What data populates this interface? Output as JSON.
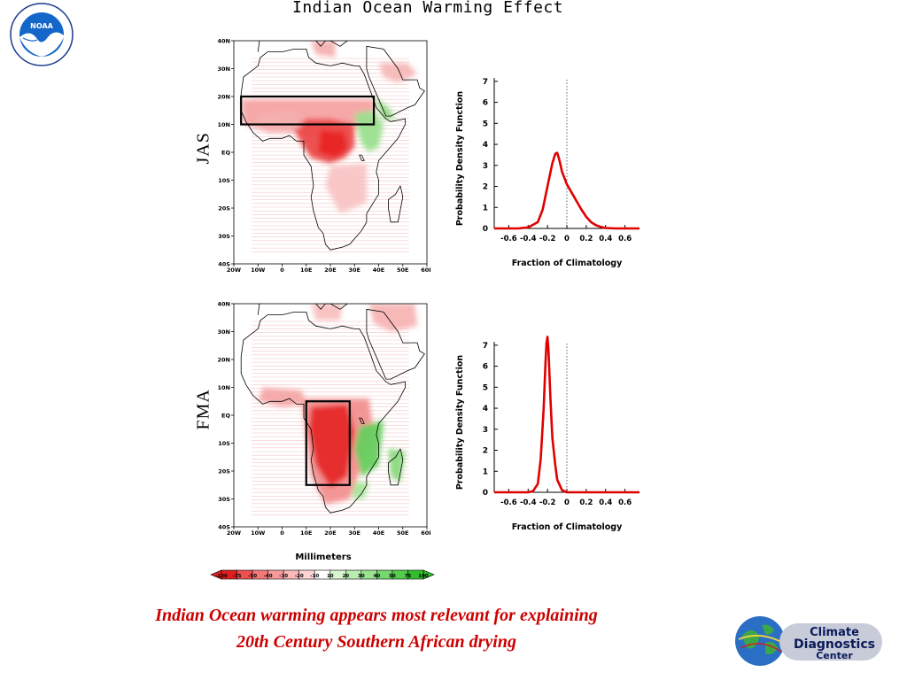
{
  "title": "Indian Ocean Warming Effect",
  "logos": {
    "noaa_label": "NOAA",
    "noaa_ring_top": "NATIONAL OCEANIC AND ATMOSPHERIC ADMINISTRATION",
    "noaa_ring_bottom": "U.S. DEPARTMENT OF COMMERCE",
    "cdc_line1": "Climate",
    "cdc_line2": "Diagnostics",
    "cdc_line3": "Center"
  },
  "maps": [
    {
      "season": "JAS",
      "lat_ticks": [
        "40N",
        "30N",
        "20N",
        "10N",
        "EQ",
        "10S",
        "20S",
        "30S",
        "40S"
      ],
      "lon_ticks": [
        "20W",
        "10W",
        "0",
        "10E",
        "20E",
        "30E",
        "40E",
        "50E",
        "60E"
      ],
      "box": {
        "lon_min": -17,
        "lon_max": 38,
        "lat_min": 10,
        "lat_max": 20
      }
    },
    {
      "season": "FMA",
      "lat_ticks": [
        "40N",
        "30N",
        "20N",
        "10N",
        "EQ",
        "10S",
        "20S",
        "30S",
        "40S"
      ],
      "lon_ticks": [
        "20W",
        "10W",
        "0",
        "10E",
        "20E",
        "30E",
        "40E",
        "50E",
        "60E"
      ],
      "box": {
        "lon_min": 10,
        "lon_max": 28,
        "lat_min": -25,
        "lat_max": 5
      }
    }
  ],
  "colorbar": {
    "label": "Millimeters",
    "ticks": [
      "-100",
      "-75",
      "-50",
      "-40",
      "-30",
      "-20",
      "-10",
      "10",
      "20",
      "30",
      "40",
      "50",
      "75",
      "100"
    ],
    "colors": [
      "#e02020",
      "#ee5050",
      "#f57878",
      "#f89a9a",
      "#fbb8b8",
      "#fdd4d4",
      "#ffffff",
      "#d8f5d0",
      "#b8ecb0",
      "#98e290",
      "#76d86e",
      "#54cc4c",
      "#30c02c"
    ]
  },
  "chart_data": [
    {
      "type": "line",
      "season": "JAS",
      "xlabel": "Fraction of Climatology",
      "ylabel": "Probability Density Function",
      "xlim": [
        -0.75,
        0.75
      ],
      "ylim": [
        0,
        7.5
      ],
      "xticks": [
        -0.6,
        -0.4,
        -0.2,
        0,
        0.2,
        0.4,
        0.6
      ],
      "xtick_labels": [
        "-0.6",
        "-0.4",
        "-0.2",
        "0",
        "0.2",
        "0.4",
        "0.6"
      ],
      "yticks": [
        0,
        1,
        2,
        3,
        4,
        5,
        6,
        7
      ],
      "reference_line_x": 0,
      "color": "#e00000",
      "x": [
        -0.75,
        -0.5,
        -0.4,
        -0.3,
        -0.25,
        -0.2,
        -0.15,
        -0.12,
        -0.1,
        -0.08,
        -0.05,
        0,
        0.05,
        0.1,
        0.15,
        0.2,
        0.25,
        0.3,
        0.35,
        0.4,
        0.5,
        0.75
      ],
      "y": [
        0,
        0,
        0.05,
        0.3,
        0.9,
        2.0,
        3.1,
        3.55,
        3.6,
        3.3,
        2.7,
        2.1,
        1.7,
        1.3,
        0.9,
        0.55,
        0.3,
        0.15,
        0.07,
        0.02,
        0,
        0
      ]
    },
    {
      "type": "line",
      "season": "FMA",
      "xlabel": "Fraction of Climatology",
      "ylabel": "Probability Density Function",
      "xlim": [
        -0.75,
        0.75
      ],
      "ylim": [
        0,
        7.5
      ],
      "xticks": [
        -0.6,
        -0.4,
        -0.2,
        0,
        0.2,
        0.4,
        0.6
      ],
      "xtick_labels": [
        "-0.6",
        "-0.4",
        "-0.2",
        "0",
        "0.2",
        "0.4",
        "0.6"
      ],
      "yticks": [
        0,
        1,
        2,
        3,
        4,
        5,
        6,
        7
      ],
      "reference_line_x": 0,
      "color": "#e00000",
      "x": [
        -0.75,
        -0.4,
        -0.35,
        -0.3,
        -0.27,
        -0.24,
        -0.22,
        -0.21,
        -0.2,
        -0.19,
        -0.17,
        -0.15,
        -0.12,
        -0.1,
        -0.05,
        0,
        0.75
      ],
      "y": [
        0,
        0,
        0.05,
        0.4,
        1.6,
        4.0,
        6.2,
        7.1,
        7.4,
        6.8,
        4.5,
        2.6,
        1.3,
        0.6,
        0.1,
        0,
        0
      ]
    }
  ],
  "caption_line1": "Indian Ocean warming appears most relevant for explaining",
  "caption_line2": "20th Century Southern African drying"
}
